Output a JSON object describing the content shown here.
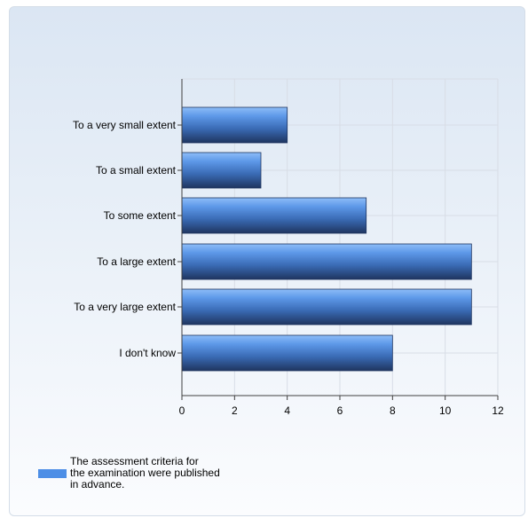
{
  "chart_data": {
    "type": "bar",
    "orientation": "horizontal",
    "categories": [
      "To a very small extent",
      "To a small extent",
      "To some extent",
      "To a large extent",
      "To a very large extent",
      "I don't know"
    ],
    "series": [
      {
        "name": "The assessment criteria for the examination were published in advance.",
        "values": [
          4,
          3,
          7,
          11,
          11,
          8
        ]
      }
    ],
    "xlim": [
      0,
      12
    ],
    "xticks": [
      0,
      2,
      4,
      6,
      8,
      10,
      12
    ],
    "grid": true,
    "legend_position": "bottom-left",
    "colors": {
      "bar_top": "#7fb2f5",
      "bar_mid": "#4a86dc",
      "bar_bottom": "#233a66",
      "grid": "#d8dde6",
      "axis": "#404040"
    }
  },
  "legend": {
    "lines": [
      "The assessment criteria for",
      "the examination were published",
      "in advance."
    ]
  }
}
